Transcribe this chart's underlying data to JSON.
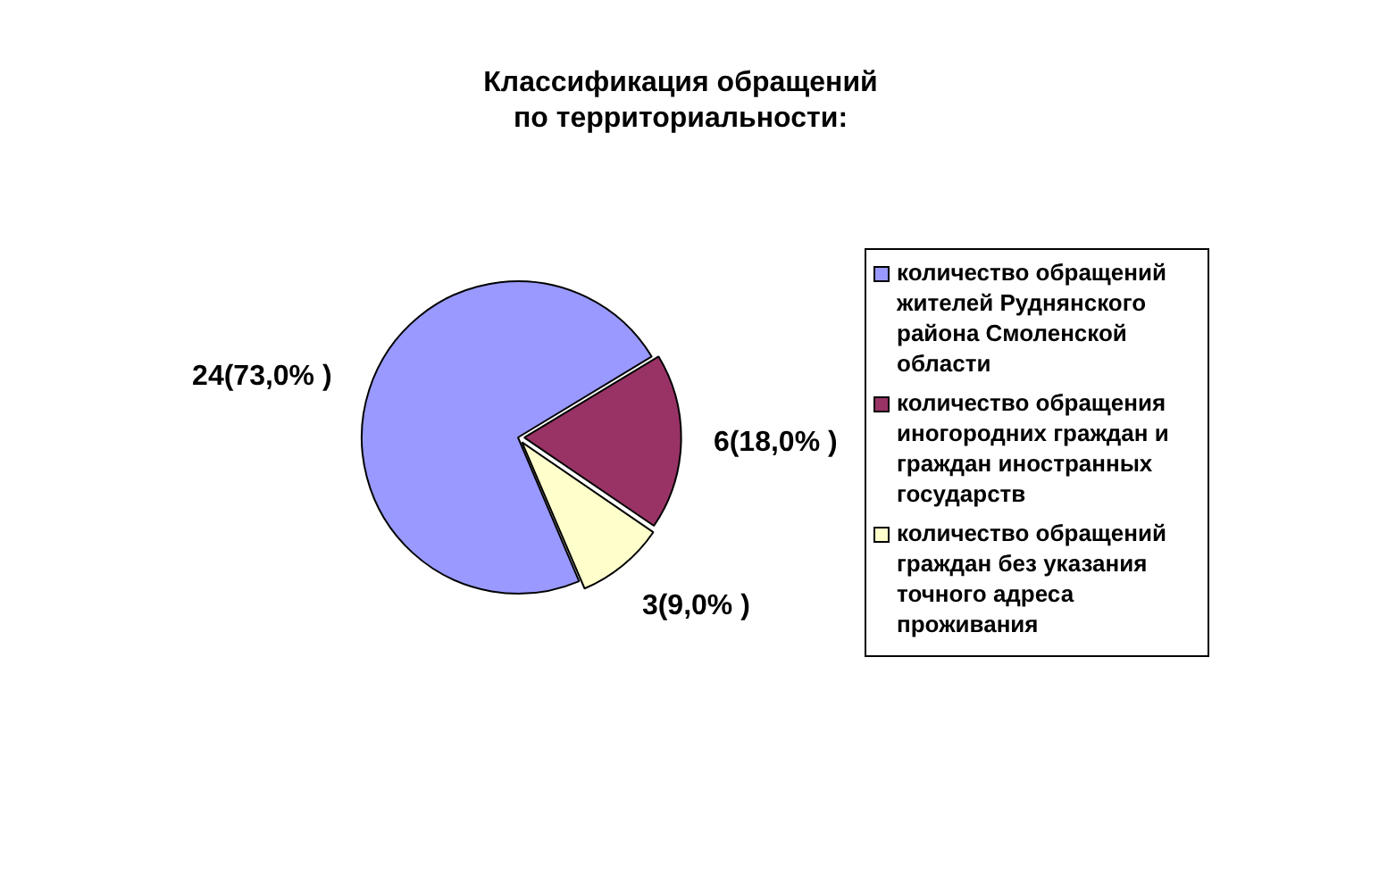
{
  "chart_data": {
    "type": "pie",
    "title": "Классификация обращений по территориальности:",
    "categories": [
      "количество обращений жителей Руднянского района Смоленской области",
      "количество обращения иногородних граждан и граждан иностранных государств",
      "количество обращений граждан без указания точного адреса проживания"
    ],
    "values": [
      24,
      6,
      3
    ],
    "colors": [
      "#9999ff",
      "#993366",
      "#ffffcc"
    ],
    "value_labels": [
      "24(73,0% )",
      "6(18,0% )",
      "3(9,0% )"
    ],
    "legend": "right"
  }
}
